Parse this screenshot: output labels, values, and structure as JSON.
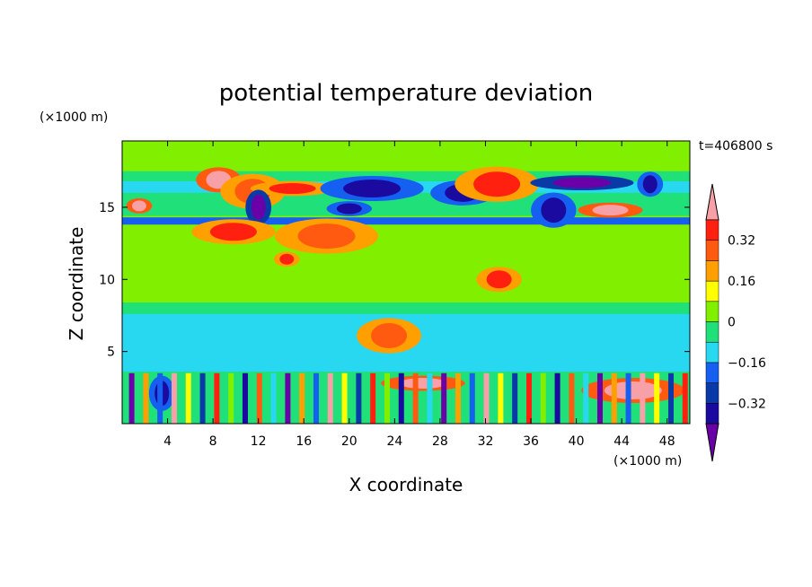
{
  "chart_data": {
    "type": "heatmap",
    "title": "potential temperature deviation",
    "xlabel": "X coordinate",
    "ylabel": "Z coordinate",
    "x_unit": "(×1000 m)",
    "y_unit": "(×1000 m)",
    "time_label": "t=406800 s",
    "xlim": [
      0,
      50
    ],
    "ylim": [
      0,
      19.6
    ],
    "x_ticks": [
      "4",
      "8",
      "12",
      "16",
      "20",
      "24",
      "28",
      "32",
      "36",
      "40",
      "44",
      "48"
    ],
    "y_ticks": [
      "5",
      "10",
      "15"
    ],
    "colorbar": {
      "levels": [
        -0.4,
        -0.32,
        -0.24,
        -0.16,
        -0.08,
        0,
        0.08,
        0.16,
        0.24,
        0.32,
        0.4
      ],
      "labels": [
        "0.32",
        "0.16",
        "0",
        "−0.16",
        "−0.32"
      ],
      "colors": [
        "#6a00a8",
        "#1a0aa0",
        "#0a3aa8",
        "#1560f0",
        "#28d8f0",
        "#20e07a",
        "#80f000",
        "#ffff00",
        "#ffa000",
        "#ff5a10",
        "#ff2010",
        "#f8a0a8"
      ]
    },
    "features": [
      {
        "x": 1.5,
        "z": 15.1,
        "value": 0.45
      },
      {
        "x": 8.5,
        "z": 16.9,
        "value": 0.45
      },
      {
        "x": 11.5,
        "z": 16.1,
        "value": 0.3
      },
      {
        "x": 15,
        "z": 16.3,
        "value": 0.32
      },
      {
        "x": 22,
        "z": 16.3,
        "value": -0.34
      },
      {
        "x": 12,
        "z": 15.0,
        "value": -0.42
      },
      {
        "x": 20,
        "z": 14.9,
        "value": -0.38
      },
      {
        "x": 30,
        "z": 16.0,
        "value": -0.34
      },
      {
        "x": 33,
        "z": 16.6,
        "value": 0.35
      },
      {
        "x": 40.5,
        "z": 16.7,
        "value": -0.42
      },
      {
        "x": 46.5,
        "z": 16.6,
        "value": -0.34
      },
      {
        "x": 38,
        "z": 14.8,
        "value": -0.33
      },
      {
        "x": 43,
        "z": 14.8,
        "value": 0.45
      },
      {
        "x": 9.8,
        "z": 13.3,
        "value": 0.35
      },
      {
        "x": 18,
        "z": 13.0,
        "value": 0.3
      },
      {
        "x": 14.5,
        "z": 11.4,
        "value": 0.35
      },
      {
        "x": 33.2,
        "z": 10.0,
        "value": 0.35
      },
      {
        "x": 23.5,
        "z": 6.1,
        "value": 0.3
      },
      {
        "x": 26.5,
        "z": 2.8,
        "value": 0.45
      },
      {
        "x": 45,
        "z": 2.3,
        "value": 0.4
      },
      {
        "x": 3.5,
        "z": 2.1,
        "value": -0.35
      }
    ]
  }
}
